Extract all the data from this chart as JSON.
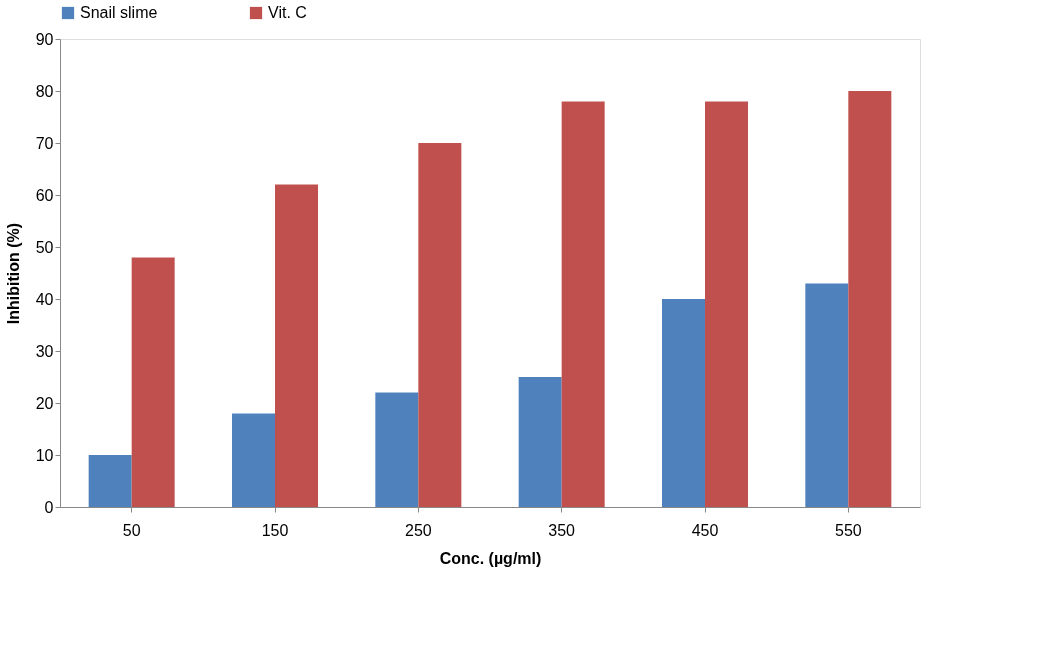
{
  "chart_data": {
    "type": "bar",
    "xlabel": "Conc. (µg/ml)",
    "ylabel": "Inhibition (%)",
    "categories": [
      "50",
      "150",
      "250",
      "350",
      "450",
      "550"
    ],
    "series": [
      {
        "name": "Snail slime",
        "color": "#4f81bd",
        "values": [
          10,
          18,
          22,
          25,
          40,
          43
        ]
      },
      {
        "name": "Vit. C",
        "color": "#c0504d",
        "values": [
          48,
          62,
          70,
          78,
          78,
          80
        ]
      }
    ],
    "ylim": [
      0,
      90
    ],
    "yticks": [
      0,
      10,
      20,
      30,
      40,
      50,
      60,
      70,
      80,
      90
    ],
    "grid": false,
    "legend": "top"
  }
}
